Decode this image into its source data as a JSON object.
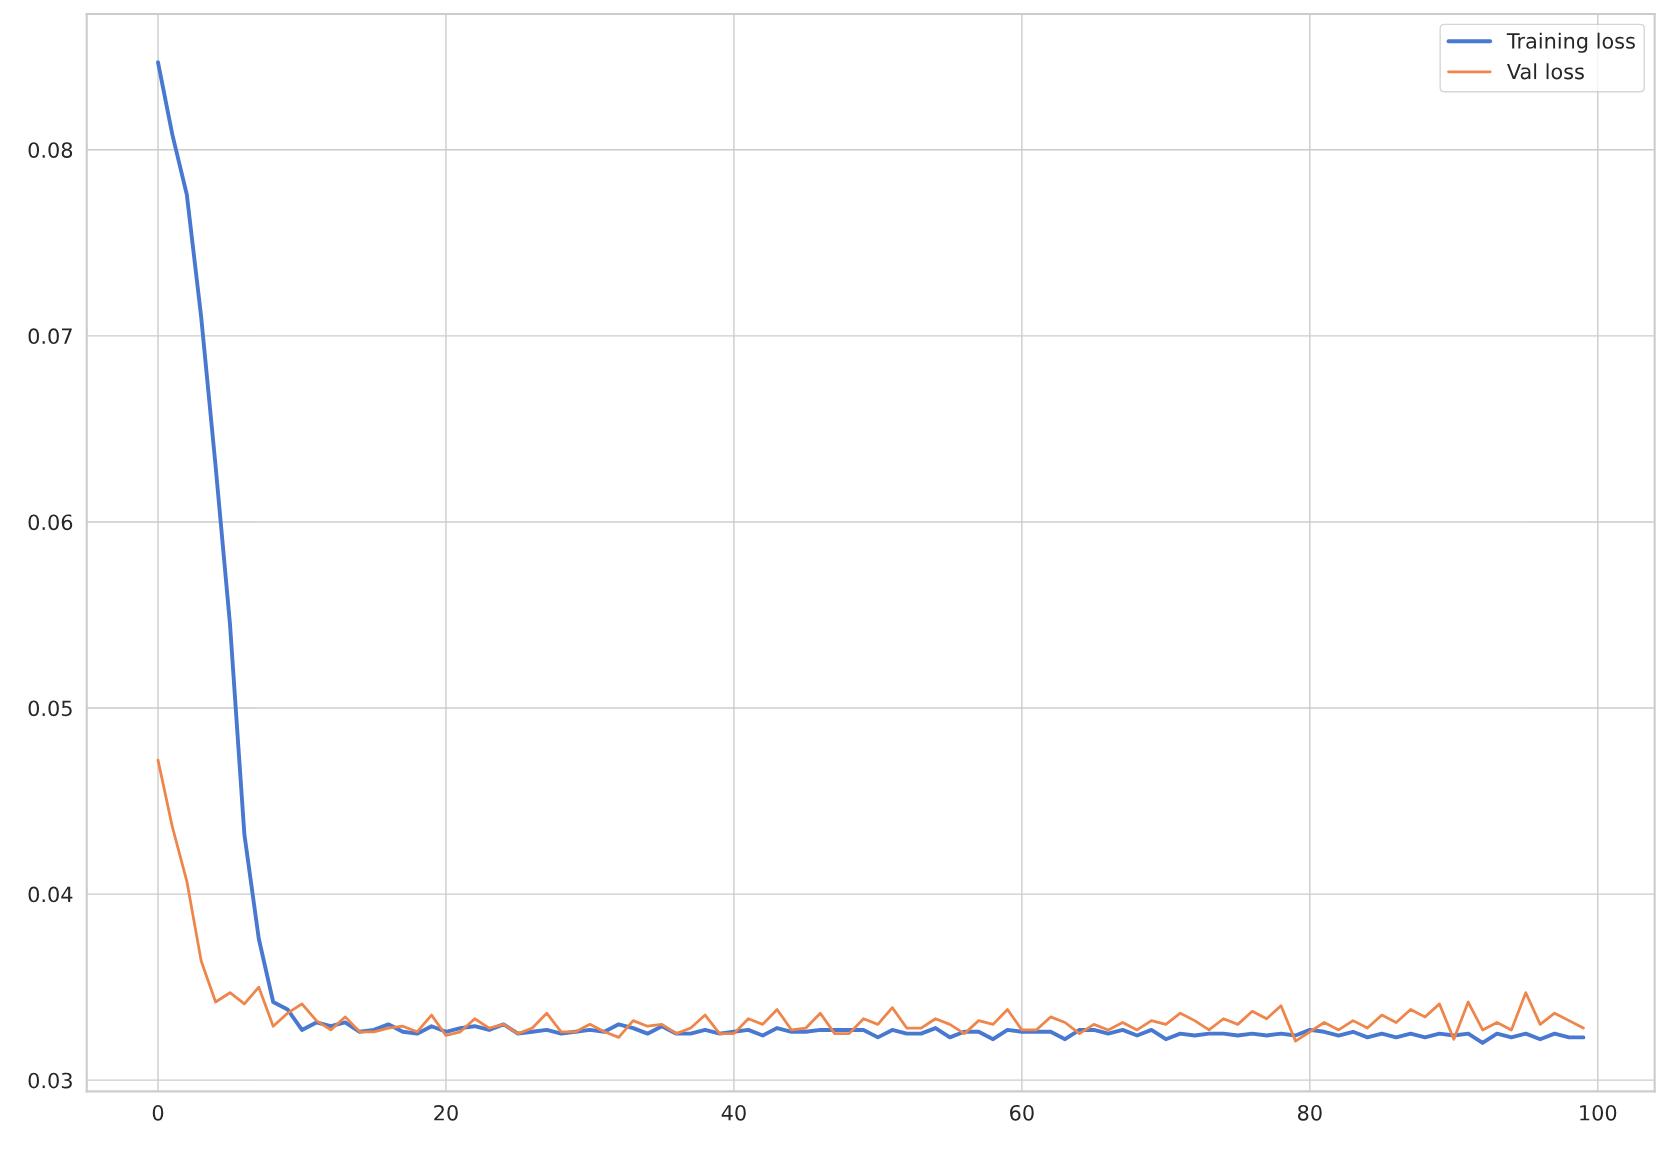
{
  "chart_data": {
    "type": "line",
    "x": [
      0,
      1,
      2,
      3,
      4,
      5,
      6,
      7,
      8,
      9,
      10,
      11,
      12,
      13,
      14,
      15,
      16,
      17,
      18,
      19,
      20,
      21,
      22,
      23,
      24,
      25,
      26,
      27,
      28,
      29,
      30,
      31,
      32,
      33,
      34,
      35,
      36,
      37,
      38,
      39,
      40,
      41,
      42,
      43,
      44,
      45,
      46,
      47,
      48,
      49,
      50,
      51,
      52,
      53,
      54,
      55,
      56,
      57,
      58,
      59,
      60,
      61,
      62,
      63,
      64,
      65,
      66,
      67,
      68,
      69,
      70,
      71,
      72,
      73,
      74,
      75,
      76,
      77,
      78,
      79,
      80,
      81,
      82,
      83,
      84,
      85,
      86,
      87,
      88,
      89,
      90,
      91,
      92,
      93,
      94,
      95,
      96,
      97,
      98,
      99
    ],
    "series": [
      {
        "name": "Training loss",
        "color": "#4878d0",
        "values": [
          0.0847,
          0.0808,
          0.0776,
          0.071,
          0.063,
          0.0545,
          0.0432,
          0.0376,
          0.0342,
          0.0338,
          0.0327,
          0.0331,
          0.0329,
          0.0331,
          0.0326,
          0.0327,
          0.033,
          0.0326,
          0.0325,
          0.0329,
          0.0326,
          0.0328,
          0.0329,
          0.0327,
          0.033,
          0.0325,
          0.0326,
          0.0327,
          0.0325,
          0.0326,
          0.0327,
          0.0326,
          0.033,
          0.0328,
          0.0325,
          0.0329,
          0.0325,
          0.0325,
          0.0327,
          0.0325,
          0.0326,
          0.0327,
          0.0324,
          0.0328,
          0.0326,
          0.0326,
          0.0327,
          0.0327,
          0.0327,
          0.0327,
          0.0323,
          0.0327,
          0.0325,
          0.0325,
          0.0328,
          0.0323,
          0.0326,
          0.0326,
          0.0322,
          0.0327,
          0.0326,
          0.0326,
          0.0326,
          0.0322,
          0.0327,
          0.0327,
          0.0325,
          0.0327,
          0.0324,
          0.0327,
          0.0322,
          0.0325,
          0.0324,
          0.0325,
          0.0325,
          0.0324,
          0.0325,
          0.0324,
          0.0325,
          0.0324,
          0.0327,
          0.0326,
          0.0324,
          0.0326,
          0.0323,
          0.0325,
          0.0323,
          0.0325,
          0.0323,
          0.0325,
          0.0324,
          0.0325,
          0.032,
          0.0325,
          0.0323,
          0.0325,
          0.0322,
          0.0325,
          0.0323,
          0.0323
        ]
      },
      {
        "name": "Val loss",
        "color": "#ee854a",
        "values": [
          0.0472,
          0.0436,
          0.0407,
          0.0364,
          0.0342,
          0.0347,
          0.0341,
          0.035,
          0.0329,
          0.0336,
          0.0341,
          0.0332,
          0.0327,
          0.0334,
          0.0326,
          0.0326,
          0.0328,
          0.0329,
          0.0326,
          0.0335,
          0.0324,
          0.0326,
          0.0333,
          0.0328,
          0.033,
          0.0325,
          0.0328,
          0.0336,
          0.0326,
          0.0326,
          0.033,
          0.0326,
          0.0323,
          0.0332,
          0.0329,
          0.033,
          0.0325,
          0.0328,
          0.0335,
          0.0325,
          0.0325,
          0.0333,
          0.033,
          0.0338,
          0.0327,
          0.0328,
          0.0336,
          0.0325,
          0.0325,
          0.0333,
          0.033,
          0.0339,
          0.0328,
          0.0328,
          0.0333,
          0.033,
          0.0325,
          0.0332,
          0.033,
          0.0338,
          0.0327,
          0.0327,
          0.0334,
          0.0331,
          0.0325,
          0.033,
          0.0327,
          0.0331,
          0.0327,
          0.0332,
          0.033,
          0.0336,
          0.0332,
          0.0327,
          0.0333,
          0.033,
          0.0337,
          0.0333,
          0.034,
          0.0321,
          0.0326,
          0.0331,
          0.0327,
          0.0332,
          0.0328,
          0.0335,
          0.0331,
          0.0338,
          0.0334,
          0.0341,
          0.0322,
          0.0342,
          0.0327,
          0.0331,
          0.0327,
          0.0347,
          0.033,
          0.0336,
          0.0332,
          0.0328
        ]
      }
    ],
    "xlim": [
      -4.95,
      103.95
    ],
    "xticks": [
      0,
      20,
      40,
      60,
      80,
      100
    ],
    "ylim": [
      0.0294,
      0.0873
    ],
    "yticks": [
      0.03,
      0.04,
      0.05,
      0.06,
      0.07,
      0.08
    ],
    "grid": true,
    "legend": "top right",
    "marker": "none",
    "line_style": "solid"
  }
}
